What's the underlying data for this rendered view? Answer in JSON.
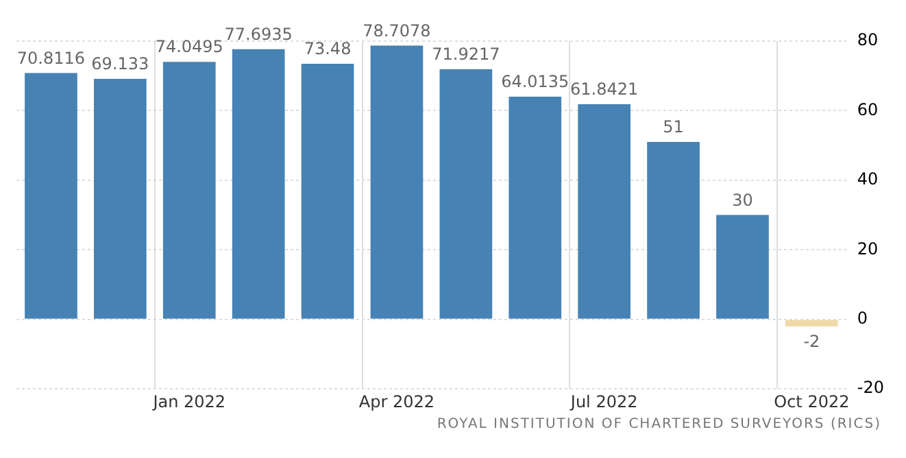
{
  "chart_data": {
    "type": "bar",
    "categories": [
      null,
      null,
      "Jan 2022",
      null,
      null,
      "Apr 2022",
      null,
      null,
      "Jul 2022",
      null,
      null,
      "Oct 2022"
    ],
    "values": [
      70.8116,
      69.133,
      74.0495,
      77.6935,
      73.48,
      78.7078,
      71.9217,
      64.0135,
      61.8421,
      51,
      30,
      -2
    ],
    "colors": [
      "#4682b4",
      "#4682b4",
      "#4682b4",
      "#4682b4",
      "#4682b4",
      "#4682b4",
      "#4682b4",
      "#4682b4",
      "#4682b4",
      "#4682b4",
      "#4682b4",
      "#f0d9a8"
    ],
    "data_labels": true,
    "ylim": [
      -20,
      80
    ],
    "yticks": [
      -20,
      0,
      20,
      40,
      60,
      80
    ],
    "grid": true,
    "legend": false,
    "annotations": [
      "ROYAL INSTITUTION OF CHARTERED SURVEYORS (RICS)"
    ]
  }
}
